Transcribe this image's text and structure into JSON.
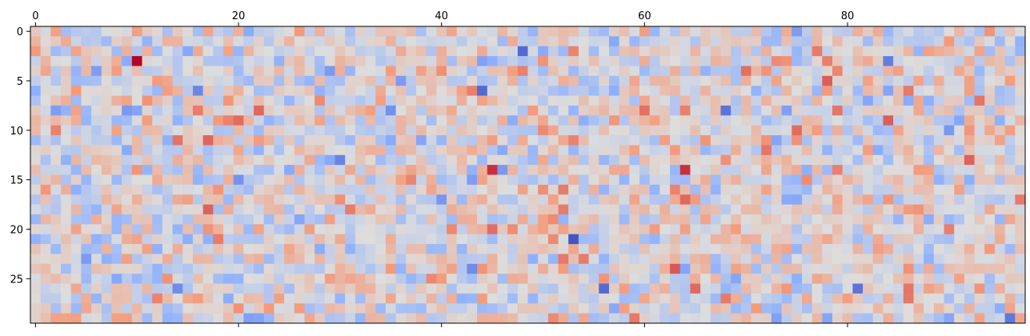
{
  "chart_data": {
    "type": "heatmap",
    "title": "",
    "xlabel": "",
    "ylabel": "",
    "colormap": "coolwarm",
    "colormap_colors": [
      "#3b4cc0",
      "#dddddd",
      "#b40426"
    ],
    "n_rows": 30,
    "n_cols": 98,
    "x_range": [
      -0.5,
      97.5
    ],
    "y_range": [
      29.5,
      -0.5
    ],
    "x_ticks": [
      0,
      20,
      40,
      60,
      80
    ],
    "y_ticks": [
      0,
      5,
      10,
      15,
      20,
      25
    ],
    "x_tick_position": "top",
    "grid": false,
    "value_range": [
      -1,
      1
    ],
    "seed": 12345,
    "spikes": [
      {
        "row": 3,
        "col": 10,
        "value": 1.0
      },
      {
        "row": 5,
        "col": 78,
        "value": 0.7
      },
      {
        "row": 8,
        "col": 79,
        "value": 0.62
      },
      {
        "row": 9,
        "col": 20,
        "value": 0.65
      },
      {
        "row": 10,
        "col": 2,
        "value": 0.58
      },
      {
        "row": 12,
        "col": 72,
        "value": 0.62
      },
      {
        "row": 14,
        "col": 45,
        "value": 0.85
      },
      {
        "row": 14,
        "col": 64,
        "value": 0.85
      },
      {
        "row": 16,
        "col": 52,
        "value": 0.6
      },
      {
        "row": 21,
        "col": 18,
        "value": 0.6
      },
      {
        "row": 24,
        "col": 63,
        "value": 0.72
      },
      {
        "row": 26,
        "col": 65,
        "value": 0.66
      },
      {
        "row": 2,
        "col": 48,
        "value": -0.85
      },
      {
        "row": 3,
        "col": 84,
        "value": -0.75
      },
      {
        "row": 6,
        "col": 16,
        "value": -0.7
      },
      {
        "row": 6,
        "col": 44,
        "value": -0.85
      },
      {
        "row": 8,
        "col": 68,
        "value": -0.8
      },
      {
        "row": 13,
        "col": 30,
        "value": -0.72
      },
      {
        "row": 21,
        "col": 53,
        "value": -0.95
      },
      {
        "row": 26,
        "col": 56,
        "value": -0.85
      },
      {
        "row": 26,
        "col": 81,
        "value": -0.8
      },
      {
        "row": 29,
        "col": 96,
        "value": -0.78
      }
    ]
  }
}
